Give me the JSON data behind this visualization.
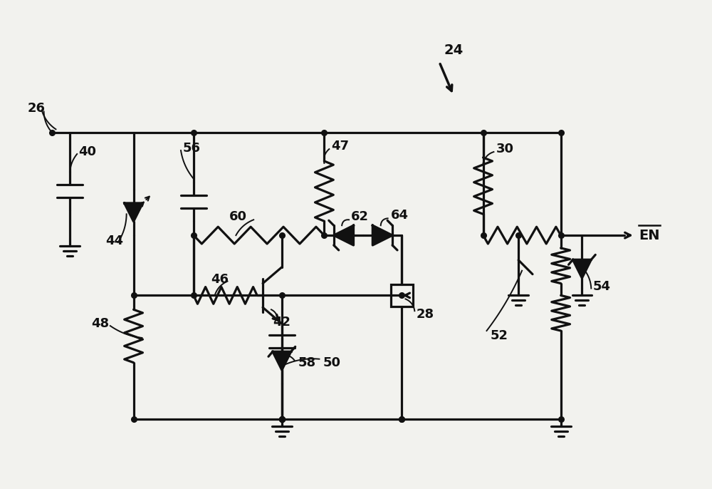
{
  "bg_color": "#f2f2ee",
  "line_color": "#111111",
  "lw": 2.3,
  "dot_r": 5.5,
  "figsize": [
    10.0,
    6.86
  ],
  "dpi": 100
}
